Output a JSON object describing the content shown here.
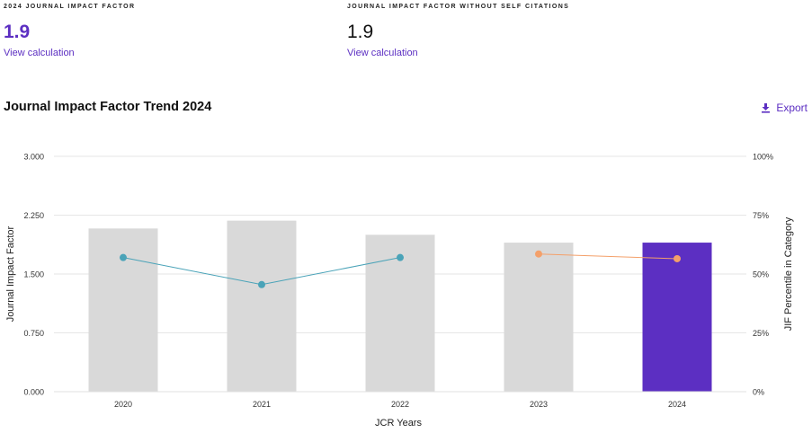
{
  "metrics": {
    "jif": {
      "label": "2024 JOURNAL IMPACT FACTOR",
      "value": "1.9",
      "link": "View calculation"
    },
    "jif_no_self": {
      "label": "JOURNAL IMPACT FACTOR WITHOUT SELF CITATIONS",
      "value": "1.9",
      "link": "View calculation"
    }
  },
  "trend": {
    "title": "Journal Impact Factor Trend 2024",
    "export_label": "Export"
  },
  "colors": {
    "accent": "#5c2fc2",
    "bar": "#d9d9d9",
    "line_blue": "#4aa3b8",
    "line_orange": "#f4a06a",
    "grid": "#e6e6e6"
  },
  "chart_data": {
    "type": "bar",
    "categories": [
      "2020",
      "2021",
      "2022",
      "2023",
      "2024"
    ],
    "xlabel": "JCR Years",
    "ylabel": "Journal Impact Factor",
    "y2label": "JIF Percentile in Category",
    "ylim": [
      0,
      3
    ],
    "yticks": [
      "0.000",
      "0.750",
      "1.500",
      "2.250",
      "3.000"
    ],
    "y2lim": [
      0,
      100
    ],
    "y2ticks": [
      "0%",
      "25%",
      "50%",
      "75%",
      "100%"
    ],
    "grid": true,
    "series": [
      {
        "values": [
          2.08,
          2.18,
          2.0,
          1.9,
          1.9
        ],
        "highlight_index": 4
      },
      {
        "values": [
          57.0,
          45.5,
          57.0,
          null,
          null
        ],
        "color": "#4aa3b8"
      },
      {
        "values": [
          null,
          null,
          null,
          58.5,
          56.5
        ],
        "color": "#f4a06a"
      }
    ]
  }
}
